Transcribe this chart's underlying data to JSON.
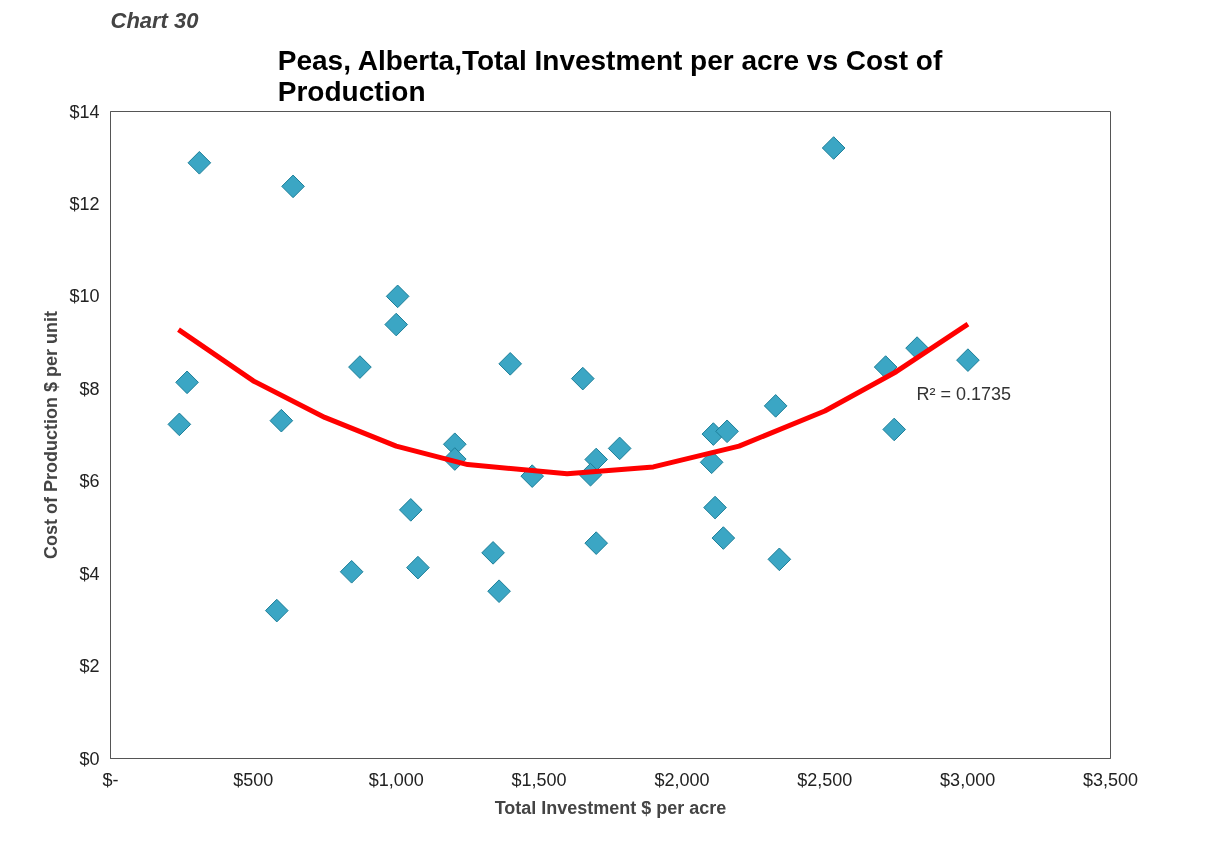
{
  "chart_data": {
    "type": "scatter",
    "title": "Peas, Alberta,Total Investment per acre vs Cost of Production",
    "xlabel": "Total Investment $ per acre",
    "ylabel": "Cost of Production $ per unit",
    "annotations": [
      "Chart  30",
      "R² = 0.1735"
    ],
    "marker": "diamond",
    "grid": false,
    "xlim": [
      0,
      3500
    ],
    "ylim": [
      0,
      14
    ],
    "xticks": [
      {
        "value": 0,
        "label": "$-"
      },
      {
        "value": 500,
        "label": "$500"
      },
      {
        "value": 1000,
        "label": "$1,000"
      },
      {
        "value": 1500,
        "label": "$1,500"
      },
      {
        "value": 2000,
        "label": "$2,000"
      },
      {
        "value": 2500,
        "label": "$2,500"
      },
      {
        "value": 3000,
        "label": "$3,000"
      },
      {
        "value": 3500,
        "label": "$3,500"
      }
    ],
    "yticks": [
      {
        "value": 0,
        "label": "$0"
      },
      {
        "value": 2,
        "label": "$2"
      },
      {
        "value": 4,
        "label": "$4"
      },
      {
        "value": 6,
        "label": "$6"
      },
      {
        "value": 8,
        "label": "$8"
      },
      {
        "value": 10,
        "label": "$10"
      },
      {
        "value": 12,
        "label": "$12"
      },
      {
        "value": 14,
        "label": "$14"
      }
    ],
    "series": [
      {
        "color": "#3ba6c4",
        "x": [
          311,
          639,
          1005,
          1000,
          268,
          873,
          1399,
          241,
          598,
          1205,
          1205,
          1476,
          1051,
          1339,
          844,
          1076,
          1360,
          582,
          2531,
          1653,
          2713,
          2823,
          3001,
          2328,
          2743,
          2110,
          2158,
          1782,
          1700,
          2104,
          1680,
          2116,
          1700,
          2145,
          2341
        ],
        "values": [
          12.89,
          12.38,
          10.0,
          9.39,
          8.14,
          8.47,
          8.54,
          7.23,
          7.31,
          6.8,
          6.48,
          6.11,
          5.38,
          4.45,
          4.04,
          4.13,
          3.62,
          3.2,
          13.21,
          8.22,
          8.47,
          8.88,
          8.62,
          7.63,
          7.12,
          7.02,
          7.08,
          6.71,
          6.47,
          6.41,
          6.14,
          5.43,
          4.66,
          4.77,
          4.31
        ]
      },
      {
        "type": "line",
        "color": "#ff0000",
        "marker": "none",
        "x": [
          238,
          500,
          750,
          1000,
          1250,
          1598,
          1900,
          2200,
          2500,
          2750,
          3001
        ],
        "values": [
          9.28,
          8.17,
          7.38,
          6.76,
          6.36,
          6.16,
          6.31,
          6.76,
          7.52,
          8.37,
          9.4
        ]
      }
    ]
  }
}
